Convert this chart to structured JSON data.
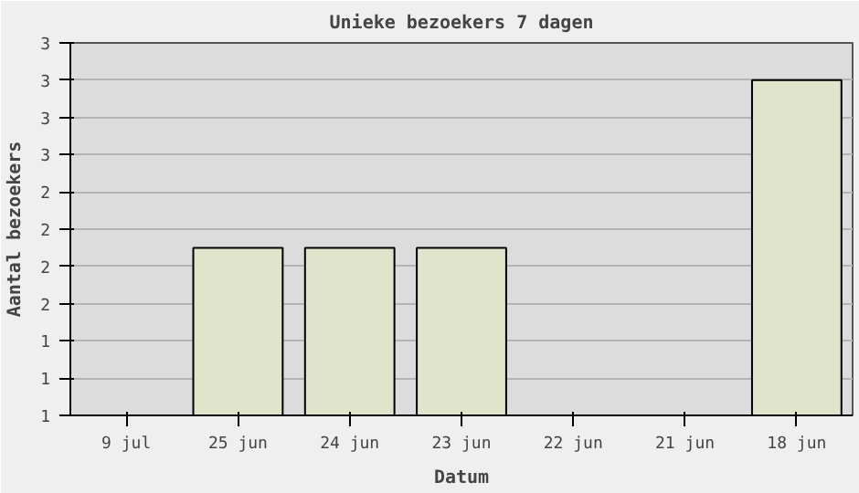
{
  "chart_data": {
    "type": "bar",
    "title": "Unieke bezoekers 7 dagen",
    "xlabel": "Datum",
    "ylabel": "Aantal bezoekers",
    "categories": [
      "9 jul",
      "25 jun",
      "24 jun",
      "23 jun",
      "22 jun",
      "21 jun",
      "18 jun"
    ],
    "values": [
      null,
      2,
      2,
      2,
      null,
      null,
      3
    ],
    "color": "#dfe4ca",
    "ylim": [
      1,
      3.2222
    ],
    "yticks": [
      {
        "value": 1,
        "label": "1"
      },
      {
        "value": 1.2222,
        "label": "1"
      },
      {
        "value": 1.4444,
        "label": "1"
      },
      {
        "value": 1.6667,
        "label": "2"
      },
      {
        "value": 1.8889,
        "label": "2"
      },
      {
        "value": 2.1111,
        "label": "2"
      },
      {
        "value": 2.3333,
        "label": "2"
      },
      {
        "value": 2.5556,
        "label": "3"
      },
      {
        "value": 2.7778,
        "label": "3"
      },
      {
        "value": 3,
        "label": "3"
      },
      {
        "value": 3.2222,
        "label": "3"
      }
    ],
    "grid": "y"
  }
}
